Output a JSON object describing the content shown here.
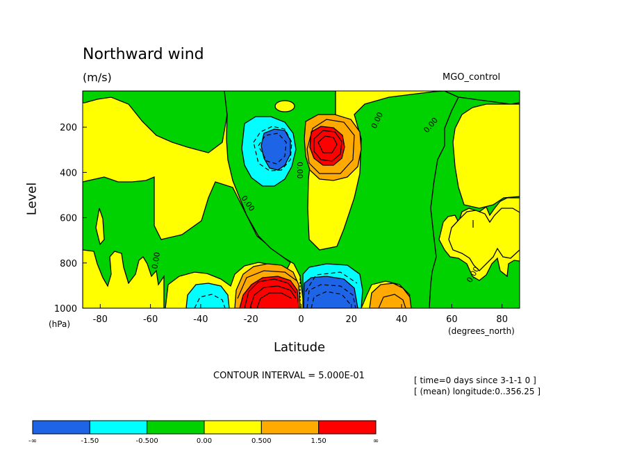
{
  "chart_data": {
    "type": "heatmap",
    "title": "Northward wind",
    "units": "(m/s)",
    "run_label": "MGO_control",
    "xlabel": "Latitude",
    "x_units": "(degrees_north)",
    "ylabel": "Level",
    "y_units": "(hPa)",
    "xlim": [
      -87,
      87
    ],
    "ylim": [
      1000,
      40
    ],
    "y_reversed": true,
    "x_ticks": [
      -80,
      -60,
      -40,
      -20,
      0,
      20,
      40,
      60,
      80
    ],
    "y_ticks": [
      200,
      400,
      600,
      800,
      1000
    ],
    "contour_interval_text": "CONTOUR INTERVAL = 5.000E-01",
    "info_lines": [
      "[ time=0 days since 3-1-1 0 ]",
      "[ (mean) longitude:0..356.25 ]"
    ],
    "contour_labels": [
      "0.00",
      "0.00",
      "0.00",
      "0.00",
      "0.00",
      "0.00"
    ],
    "colorbar": {
      "bins": [
        {
          "range": [
            "-∞",
            "-1.50"
          ],
          "color": "#1e64e6"
        },
        {
          "range": [
            "-1.50",
            "-0.500"
          ],
          "color": "#00ffff"
        },
        {
          "range": [
            "-0.500",
            "0.00"
          ],
          "color": "#00d200"
        },
        {
          "range": [
            "0.00",
            "0.500"
          ],
          "color": "#ffff00"
        },
        {
          "range": [
            "0.500",
            "1.50"
          ],
          "color": "#ffaa00"
        },
        {
          "range": [
            "1.50",
            "∞"
          ],
          "color": "#ff0000"
        }
      ],
      "labels": [
        "-∞",
        "-1.50",
        "-0.500",
        "0.00",
        "0.500",
        "1.50",
        "∞"
      ]
    },
    "features": [
      {
        "lat": -9,
        "level": 250,
        "value": -1.6,
        "sign": "negative"
      },
      {
        "lat": 8,
        "level": 250,
        "value": 1.8,
        "sign": "positive"
      },
      {
        "lat": -10,
        "level": 970,
        "value": 3.0,
        "sign": "positive"
      },
      {
        "lat": 8,
        "level": 950,
        "value": -2.5,
        "sign": "negative"
      },
      {
        "lat": -43,
        "level": 960,
        "value": -0.8,
        "sign": "negative"
      },
      {
        "lat": 35,
        "level": 960,
        "value": 0.7,
        "sign": "positive"
      }
    ]
  }
}
